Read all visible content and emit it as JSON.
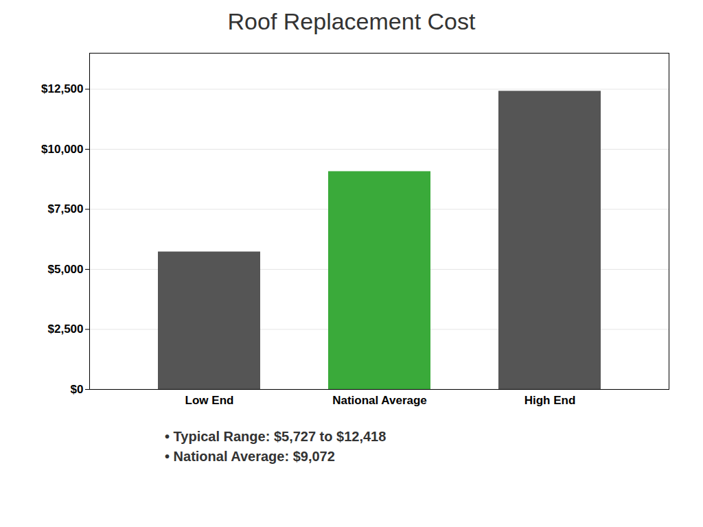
{
  "chart_data": {
    "type": "bar",
    "title": "Roof Replacement Cost",
    "categories": [
      "Low End",
      "National Average",
      "High End"
    ],
    "values": [
      5727,
      9072,
      12418
    ],
    "colors": [
      "#555555",
      "#3aaa3a",
      "#555555"
    ],
    "ylim": [
      0,
      14000
    ],
    "yticks": [
      {
        "value": 0,
        "label": "$0"
      },
      {
        "value": 2500,
        "label": "$2,500"
      },
      {
        "value": 5000,
        "label": "$5,000"
      },
      {
        "value": 7500,
        "label": "$7,500"
      },
      {
        "value": 10000,
        "label": "$10,000"
      },
      {
        "value": 12500,
        "label": "$12,500"
      }
    ],
    "grid": true,
    "annotations": [
      "•  Typical Range: $5,727 to $12,418",
      "•  National Average: $9,072"
    ]
  }
}
